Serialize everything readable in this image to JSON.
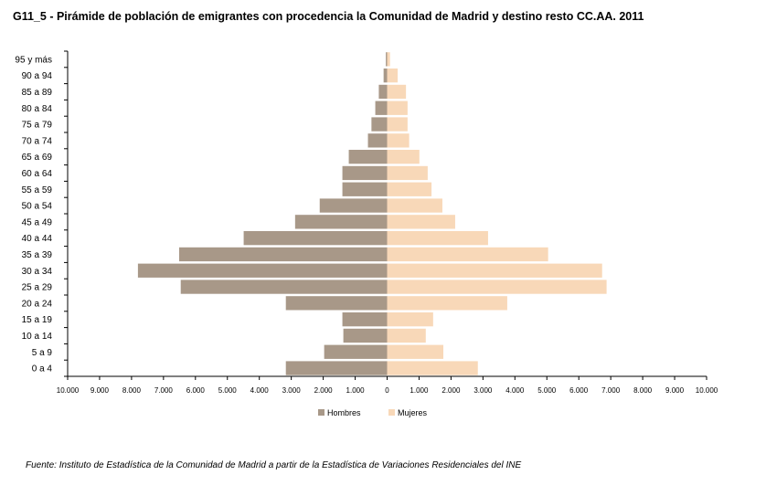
{
  "title": "G11_5 - Pirámide de población de emigrantes con procedencia la Comunidad de Madrid y destino resto CC.AA.  2011",
  "source": "Fuente: Instituto de Estadística de la Comunidad de Madrid a partir de la Estadística de Variaciones Residenciales del  INE",
  "chart_data": {
    "type": "bar",
    "orientation": "horizontal-pyramid",
    "title": "G11_5 - Pirámide de población de emigrantes con procedencia la Comunidad de Madrid y destino resto CC.AA.  2011",
    "categories": [
      "95 y más",
      "90 a 94",
      "85 a 89",
      "80 a 84",
      "75 a 79",
      "70 a 74",
      "65 a 69",
      "60 a 64",
      "55 a 59",
      "50 a 54",
      "45 a 49",
      "40 a 44",
      "35 a 39",
      "30 a 34",
      "25 a 29",
      "20 a 24",
      "15 a 19",
      "10 a 14",
      "5 a 9",
      "0 a 4"
    ],
    "series": [
      {
        "name": "Hombres",
        "color": "#a89888",
        "values": [
          40,
          110,
          260,
          370,
          490,
          600,
          1200,
          1400,
          1400,
          2110,
          2880,
          4490,
          6510,
          7800,
          6460,
          3170,
          1400,
          1370,
          1970,
          3170
        ]
      },
      {
        "name": "Mujeres",
        "color": "#f8d8b8",
        "values": [
          90,
          330,
          590,
          640,
          640,
          690,
          1010,
          1270,
          1390,
          1730,
          2130,
          3160,
          5040,
          6730,
          6870,
          3760,
          1440,
          1210,
          1760,
          2840
        ]
      }
    ],
    "xlim": [
      -10000,
      10000
    ],
    "x_ticks": [
      {
        "value": -10000,
        "label": "10.000"
      },
      {
        "value": -9000,
        "label": "9.000"
      },
      {
        "value": -8000,
        "label": "8.000"
      },
      {
        "value": -7000,
        "label": "7.000"
      },
      {
        "value": -6000,
        "label": "6.000"
      },
      {
        "value": -5000,
        "label": "5.000"
      },
      {
        "value": -4000,
        "label": "4.000"
      },
      {
        "value": -3000,
        "label": "3.000"
      },
      {
        "value": -2000,
        "label": "2.000"
      },
      {
        "value": -1000,
        "label": "1.000"
      },
      {
        "value": 0,
        "label": "0"
      },
      {
        "value": 1000,
        "label": "1.000"
      },
      {
        "value": 2000,
        "label": "2.000"
      },
      {
        "value": 3000,
        "label": "3.000"
      },
      {
        "value": 4000,
        "label": "4.000"
      },
      {
        "value": 5000,
        "label": "5.000"
      },
      {
        "value": 6000,
        "label": "6.000"
      },
      {
        "value": 7000,
        "label": "7.000"
      },
      {
        "value": 8000,
        "label": "8.000"
      },
      {
        "value": 9000,
        "label": "9.000"
      },
      {
        "value": 10000,
        "label": "10.000"
      }
    ],
    "grid": false,
    "legend": "bottom-center",
    "xlabel": "",
    "ylabel": ""
  }
}
